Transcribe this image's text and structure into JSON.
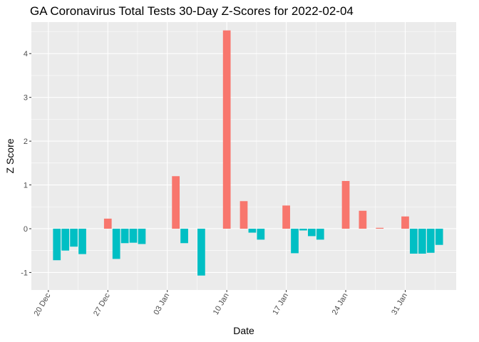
{
  "chart_data": {
    "type": "bar",
    "title": "GA Coronavirus Total Tests 30-Day Z-Scores for 2022-02-04",
    "xlabel": "Date",
    "ylabel": "Z Score",
    "ylim": [
      -1.4,
      4.72
    ],
    "yticks": [
      -1,
      0,
      1,
      2,
      3,
      4
    ],
    "x_range": [
      "2021-12-18",
      "2022-02-06"
    ],
    "xticks": [
      {
        "date": "2021-12-20",
        "label": "20 Dec"
      },
      {
        "date": "2021-12-27",
        "label": "27 Dec"
      },
      {
        "date": "2022-01-03",
        "label": "03 Jan"
      },
      {
        "date": "2022-01-10",
        "label": "10 Jan"
      },
      {
        "date": "2022-01-17",
        "label": "17 Jan"
      },
      {
        "date": "2022-01-24",
        "label": "24 Jan"
      },
      {
        "date": "2022-01-31",
        "label": "31 Jan"
      }
    ],
    "colors": {
      "positive": "#F8766D",
      "negative": "#00BFC4",
      "panel": "#EBEBEB",
      "grid": "#FFFFFF"
    },
    "legend": "none",
    "grid": true,
    "bars": [
      {
        "date": "2021-12-21",
        "value": -0.72
      },
      {
        "date": "2021-12-22",
        "value": -0.5
      },
      {
        "date": "2021-12-23",
        "value": -0.41
      },
      {
        "date": "2021-12-24",
        "value": -0.58
      },
      {
        "date": "2021-12-27",
        "value": 0.23
      },
      {
        "date": "2021-12-28",
        "value": -0.69
      },
      {
        "date": "2021-12-29",
        "value": -0.33
      },
      {
        "date": "2021-12-30",
        "value": -0.32
      },
      {
        "date": "2021-12-31",
        "value": -0.35
      },
      {
        "date": "2022-01-04",
        "value": 1.2
      },
      {
        "date": "2022-01-05",
        "value": -0.33
      },
      {
        "date": "2022-01-07",
        "value": -1.07
      },
      {
        "date": "2022-01-10",
        "value": 4.53
      },
      {
        "date": "2022-01-12",
        "value": 0.63
      },
      {
        "date": "2022-01-13",
        "value": -0.09
      },
      {
        "date": "2022-01-14",
        "value": -0.25
      },
      {
        "date": "2022-01-17",
        "value": 0.53
      },
      {
        "date": "2022-01-18",
        "value": -0.56
      },
      {
        "date": "2022-01-19",
        "value": -0.04
      },
      {
        "date": "2022-01-20",
        "value": -0.17
      },
      {
        "date": "2022-01-21",
        "value": -0.25
      },
      {
        "date": "2022-01-24",
        "value": 1.09
      },
      {
        "date": "2022-01-26",
        "value": 0.41
      },
      {
        "date": "2022-01-28",
        "value": 0.02
      },
      {
        "date": "2022-01-31",
        "value": 0.28
      },
      {
        "date": "2022-02-01",
        "value": -0.57
      },
      {
        "date": "2022-02-02",
        "value": -0.57
      },
      {
        "date": "2022-02-03",
        "value": -0.55
      },
      {
        "date": "2022-02-04",
        "value": -0.37
      }
    ]
  }
}
